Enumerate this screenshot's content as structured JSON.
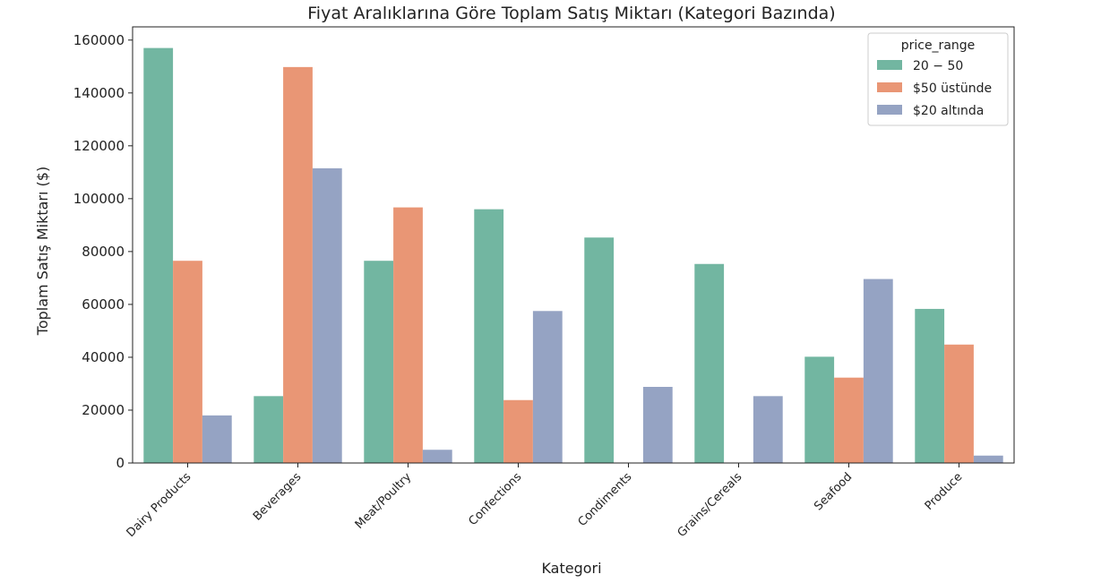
{
  "chart_data": {
    "type": "bar",
    "title": "Fiyat Aralıklarına Göre Toplam Satış Miktarı (Kategori Bazında)",
    "xlabel": "Kategori",
    "ylabel": "Toplam Satış Miktarı ($)",
    "ylim": [
      0,
      165000
    ],
    "yticks": [
      0,
      20000,
      40000,
      60000,
      80000,
      100000,
      120000,
      140000,
      160000
    ],
    "ytick_labels": [
      "0",
      "20000",
      "40000",
      "60000",
      "80000",
      "100000",
      "120000",
      "140000",
      "160000"
    ],
    "categories": [
      "Dairy Products",
      "Beverages",
      "Meat/Poultry",
      "Confections",
      "Condiments",
      "Grains/Cereals",
      "Seafood",
      "Produce"
    ],
    "legend": {
      "title": "price_range",
      "placement": "top-right"
    },
    "grid": false,
    "series": [
      {
        "name": "20 − 50",
        "color": "#72b6a1",
        "values": [
          157000,
          25300,
          76500,
          96000,
          85300,
          75300,
          40200,
          58300
        ]
      },
      {
        "name": "$50 üstünde",
        "color": "#e99675",
        "values": [
          76500,
          149800,
          96700,
          23800,
          0,
          0,
          32300,
          44800
        ]
      },
      {
        "name": "$20 altında",
        "color": "#95a3c3",
        "values": [
          18000,
          111500,
          5000,
          57500,
          28800,
          25300,
          69600,
          2800
        ]
      }
    ]
  }
}
